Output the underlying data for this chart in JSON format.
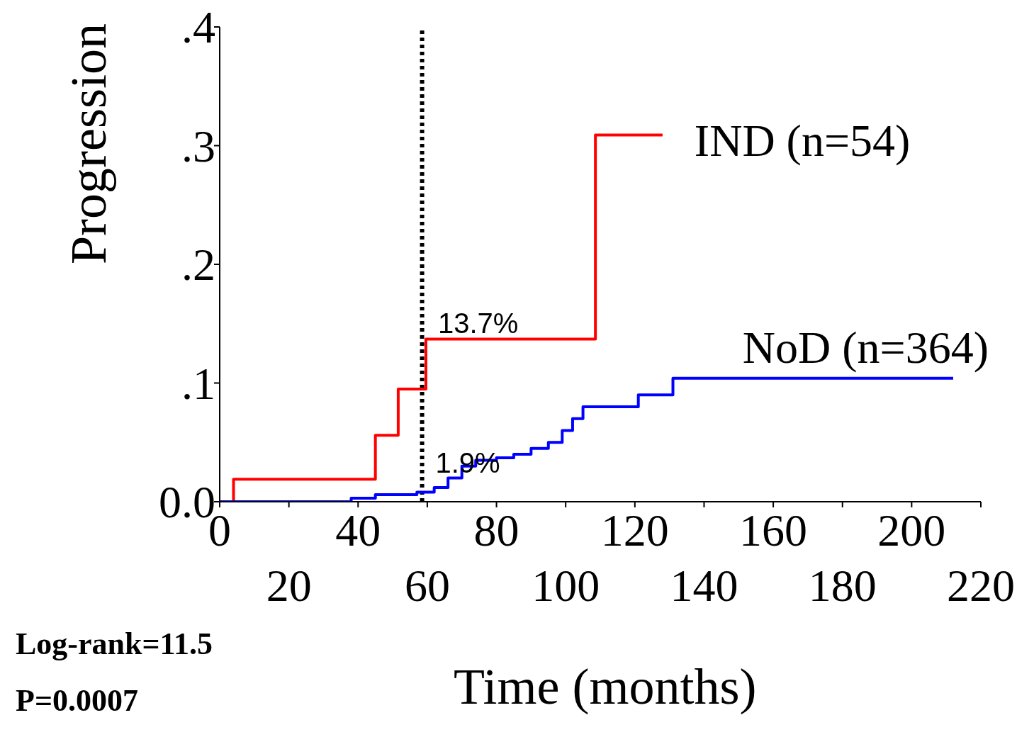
{
  "chart_data": {
    "type": "step",
    "xlabel": "Time (months)",
    "ylabel": "Progression",
    "xlim": [
      0,
      220
    ],
    "xticks": [
      0,
      {
        "value": 20,
        "label": null
      },
      40,
      {
        "value": 60,
        "label": null
      },
      80,
      {
        "value": 100,
        "label": null
      },
      120,
      {
        "value": 140,
        "label": null
      },
      160,
      {
        "value": 180,
        "label": null
      },
      200,
      {
        "value": 220,
        "label": null
      }
    ],
    "x2lim": [
      0,
      220
    ],
    "x2ticks": [
      20,
      60,
      100,
      140,
      180,
      220
    ],
    "ylim": [
      0,
      0.4
    ],
    "yticks": [
      {
        "value": 0,
        "label": "0.0"
      },
      {
        "value": 0.1,
        "label": ".1"
      },
      {
        "value": 0.2,
        "label": ".2"
      },
      {
        "value": 0.3,
        "label": ".3"
      },
      {
        "value": 0.4,
        "label": ".4"
      }
    ],
    "series": [
      {
        "name": "IND (n=54)",
        "color": "#ff0000",
        "x": [
          0,
          4,
          45,
          51.6,
          59.6,
          108.6,
          128
        ],
        "values": [
          0,
          0.019,
          0.056,
          0.095,
          0.137,
          0.309,
          0.309
        ]
      },
      {
        "name": "NoD (n=364)",
        "color": "#0000ff",
        "x": [
          0,
          38,
          45,
          57,
          62,
          66,
          70,
          74,
          80,
          85,
          90,
          95,
          99,
          102,
          105,
          121,
          131,
          212
        ],
        "values": [
          0,
          0.003,
          0.006,
          0.008,
          0.012,
          0.02,
          0.03,
          0.035,
          0.037,
          0.04,
          0.045,
          0.05,
          0.06,
          0.07,
          0.08,
          0.09,
          0.104,
          0.104
        ]
      }
    ],
    "ref_lines": [
      {
        "axis": "x",
        "value": 58.5,
        "color": "#000000",
        "line_style": "dotted"
      }
    ],
    "annotations": [
      {
        "text": "13.7%",
        "x": 62,
        "y": 0.137
      },
      {
        "text": "1.9%",
        "x": 59,
        "y": 0.019
      },
      "Log-rank=11.5",
      "P=0.0007"
    ],
    "legend": false,
    "grid": false
  }
}
